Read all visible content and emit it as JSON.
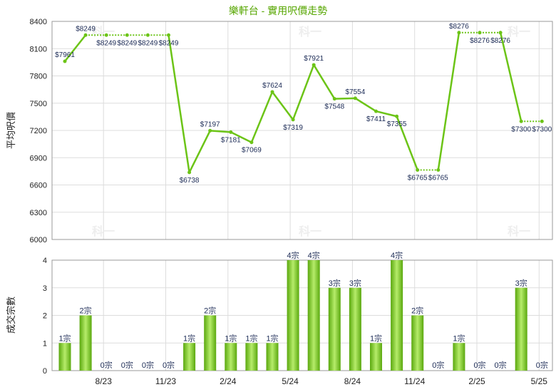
{
  "chart_data": [
    {
      "type": "line",
      "title": "樂軒台 - 實用呎價走勢",
      "ylabel": "平均呎價",
      "ylim": [
        6000,
        8400
      ],
      "yticks": [
        6000,
        6300,
        6600,
        6900,
        7200,
        7500,
        7800,
        8100,
        8400
      ],
      "grid": true,
      "color": "#6cc417",
      "x_ticks": [
        "8/23",
        "11/23",
        "2/24",
        "5/24",
        "8/24",
        "11/24",
        "2/25",
        "5/25"
      ],
      "points": [
        {
          "value": 7961,
          "label": "$7961",
          "estimated": false
        },
        {
          "value": 8249,
          "label": "$8249",
          "estimated": false
        },
        {
          "value": 8249,
          "label": "$8249",
          "estimated": true
        },
        {
          "value": 8249,
          "label": "$8249",
          "estimated": true
        },
        {
          "value": 8249,
          "label": "$8249",
          "estimated": true
        },
        {
          "value": 8249,
          "label": "$8249",
          "estimated": true
        },
        {
          "value": 6738,
          "label": "$6738",
          "estimated": false
        },
        {
          "value": 7197,
          "label": "$7197",
          "estimated": false
        },
        {
          "value": 7181,
          "label": "$7181",
          "estimated": false
        },
        {
          "value": 7069,
          "label": "$7069",
          "estimated": false
        },
        {
          "value": 7624,
          "label": "$7624",
          "estimated": false
        },
        {
          "value": 7319,
          "label": "$7319",
          "estimated": false
        },
        {
          "value": 7921,
          "label": "$7921",
          "estimated": false
        },
        {
          "value": 7548,
          "label": "$7548",
          "estimated": false
        },
        {
          "value": 7554,
          "label": "$7554",
          "estimated": false
        },
        {
          "value": 7411,
          "label": "$7411",
          "estimated": false
        },
        {
          "value": 7355,
          "label": "$7355",
          "estimated": false
        },
        {
          "value": 6765,
          "label": "$6765",
          "estimated": false
        },
        {
          "value": 6765,
          "label": "$6765",
          "estimated": true
        },
        {
          "value": 8276,
          "label": "$8276",
          "estimated": false
        },
        {
          "value": 8276,
          "label": "$8276",
          "estimated": true
        },
        {
          "value": 8276,
          "label": "$8276",
          "estimated": true
        },
        {
          "value": 7300,
          "label": "$7300",
          "estimated": false
        },
        {
          "value": 7300,
          "label": "$7300",
          "estimated": true
        }
      ]
    },
    {
      "type": "bar",
      "ylabel": "成交宗數",
      "ylim": [
        0,
        4
      ],
      "yticks": [
        0,
        1,
        2,
        3,
        4
      ],
      "grid": true,
      "color": "#7ed321",
      "x_ticks": [
        "8/23",
        "11/23",
        "2/24",
        "5/24",
        "8/24",
        "11/24",
        "2/25",
        "5/25"
      ],
      "values": [
        1,
        2,
        0,
        0,
        0,
        0,
        1,
        2,
        1,
        1,
        1,
        4,
        4,
        3,
        3,
        1,
        4,
        2,
        0,
        1,
        0,
        0,
        3,
        0
      ],
      "labels": [
        "1宗",
        "2宗",
        "0宗",
        "0宗",
        "0宗",
        "0宗",
        "1宗",
        "2宗",
        "1宗",
        "1宗",
        "1宗",
        "4宗",
        "4宗",
        "3宗",
        "3宗",
        "1宗",
        "4宗",
        "2宗",
        "0宗",
        "1宗",
        "0宗",
        "0宗",
        "3宗",
        "0宗"
      ]
    }
  ],
  "watermark": "科一"
}
